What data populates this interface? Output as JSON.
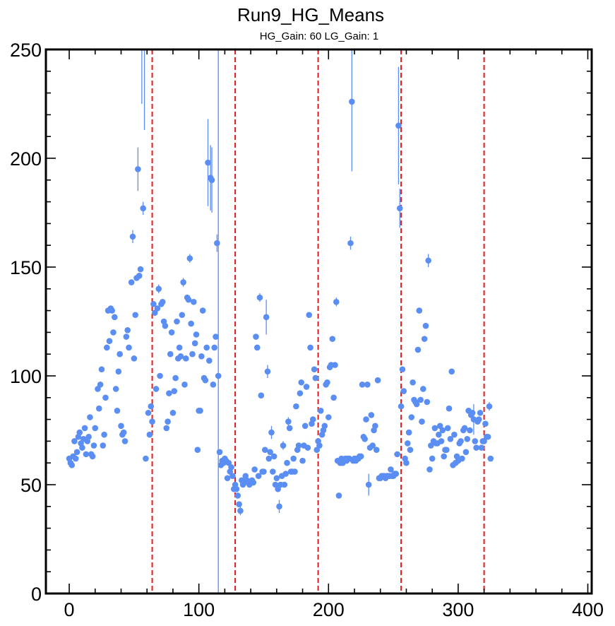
{
  "chart_data": {
    "type": "scatter",
    "title": "Run9_HG_Means",
    "subtitle": "HG_Gain: 60   LG_Gain: 1",
    "xlabel": "",
    "ylabel": "",
    "xlim": [
      -18,
      403
    ],
    "ylim": [
      0,
      250
    ],
    "xticks": [
      0,
      100,
      200,
      300,
      400
    ],
    "yticks": [
      0,
      50,
      100,
      150,
      200,
      250
    ],
    "xtick_labels": [
      "0",
      "100",
      "200",
      "300",
      "400"
    ],
    "ytick_labels": [
      "0",
      "50",
      "100",
      "150",
      "200",
      "250"
    ],
    "grid": false,
    "marker_color": "#5b8ef2",
    "vline_color": "#e41a1c",
    "vlines": [
      64,
      128,
      192,
      256,
      320
    ],
    "points": [
      {
        "x": 0,
        "y": 62
      },
      {
        "x": 1,
        "y": 60
      },
      {
        "x": 2,
        "y": 59
      },
      {
        "x": 3,
        "y": 63
      },
      {
        "x": 4,
        "y": 70
      },
      {
        "x": 5,
        "y": 62
      },
      {
        "x": 6,
        "y": 65
      },
      {
        "x": 7,
        "y": 72
      },
      {
        "x": 8,
        "y": 74
      },
      {
        "x": 9,
        "y": 69
      },
      {
        "x": 10,
        "y": 67
      },
      {
        "x": 11,
        "y": 71
      },
      {
        "x": 12,
        "y": 76
      },
      {
        "x": 13,
        "y": 64
      },
      {
        "x": 14,
        "y": 70
      },
      {
        "x": 15,
        "y": 72
      },
      {
        "x": 16,
        "y": 81
      },
      {
        "x": 17,
        "y": 64
      },
      {
        "x": 18,
        "y": 63
      },
      {
        "x": 19,
        "y": 68
      },
      {
        "x": 20,
        "y": 76
      },
      {
        "x": 22,
        "y": 94
      },
      {
        "x": 23,
        "y": 85
      },
      {
        "x": 24,
        "y": 96
      },
      {
        "x": 25,
        "y": 103
      },
      {
        "x": 26,
        "y": 68
      },
      {
        "x": 27,
        "y": 73
      },
      {
        "x": 28,
        "y": 90
      },
      {
        "x": 29,
        "y": 113
      },
      {
        "x": 30,
        "y": 130
      },
      {
        "x": 31,
        "y": 116
      },
      {
        "x": 32,
        "y": 131
      },
      {
        "x": 33,
        "y": 130
      },
      {
        "x": 34,
        "y": 120
      },
      {
        "x": 35,
        "y": 127
      },
      {
        "x": 36,
        "y": 94
      },
      {
        "x": 37,
        "y": 84
      },
      {
        "x": 38,
        "y": 102
      },
      {
        "x": 39,
        "y": 110
      },
      {
        "x": 40,
        "y": 77
      },
      {
        "x": 41,
        "y": 73
      },
      {
        "x": 42,
        "y": 74
      },
      {
        "x": 43,
        "y": 70
      },
      {
        "x": 44,
        "y": 118
      },
      {
        "x": 45,
        "y": 121
      },
      {
        "x": 46,
        "y": 113
      },
      {
        "x": 48,
        "y": 143
      },
      {
        "x": 49,
        "y": 164,
        "err": 3
      },
      {
        "x": 50,
        "y": 108
      },
      {
        "x": 51,
        "y": 128
      },
      {
        "x": 52,
        "y": 145
      },
      {
        "x": 53,
        "y": 195,
        "err": 10
      },
      {
        "x": 54,
        "y": 146
      },
      {
        "x": 55,
        "y": 149
      },
      {
        "x": 56,
        "y": 260,
        "err": 35
      },
      {
        "x": 57,
        "y": 177,
        "err": 3
      },
      {
        "x": 58,
        "y": 258,
        "err": 45
      },
      {
        "x": 59,
        "y": 62
      },
      {
        "x": 61,
        "y": 83
      },
      {
        "x": 62,
        "y": 73
      },
      {
        "x": 63,
        "y": 86
      },
      {
        "x": 64,
        "y": 79
      },
      {
        "x": 65,
        "y": 133
      },
      {
        "x": 66,
        "y": 129
      },
      {
        "x": 67,
        "y": 94
      },
      {
        "x": 68,
        "y": 131
      },
      {
        "x": 69,
        "y": 140,
        "err": 2
      },
      {
        "x": 70,
        "y": 100
      },
      {
        "x": 71,
        "y": 133
      },
      {
        "x": 72,
        "y": 134
      },
      {
        "x": 73,
        "y": 125
      },
      {
        "x": 74,
        "y": 123
      },
      {
        "x": 75,
        "y": 76
      },
      {
        "x": 76,
        "y": 79
      },
      {
        "x": 77,
        "y": 92
      },
      {
        "x": 78,
        "y": 110
      },
      {
        "x": 79,
        "y": 120
      },
      {
        "x": 80,
        "y": 83
      },
      {
        "x": 81,
        "y": 93
      },
      {
        "x": 82,
        "y": 99
      },
      {
        "x": 83,
        "y": 125
      },
      {
        "x": 84,
        "y": 108
      },
      {
        "x": 85,
        "y": 113
      },
      {
        "x": 86,
        "y": 109
      },
      {
        "x": 87,
        "y": 128
      },
      {
        "x": 88,
        "y": 143,
        "err": 2
      },
      {
        "x": 89,
        "y": 96
      },
      {
        "x": 90,
        "y": 108
      },
      {
        "x": 91,
        "y": 136
      },
      {
        "x": 92,
        "y": 135
      },
      {
        "x": 93,
        "y": 154,
        "err": 2
      },
      {
        "x": 94,
        "y": 124
      },
      {
        "x": 95,
        "y": 110
      },
      {
        "x": 96,
        "y": 134
      },
      {
        "x": 97,
        "y": 115
      },
      {
        "x": 98,
        "y": 119
      },
      {
        "x": 99,
        "y": 66
      },
      {
        "x": 100,
        "y": 84
      },
      {
        "x": 101,
        "y": 84
      },
      {
        "x": 102,
        "y": 109
      },
      {
        "x": 103,
        "y": 130
      },
      {
        "x": 104,
        "y": 99
      },
      {
        "x": 105,
        "y": 98
      },
      {
        "x": 106,
        "y": 113
      },
      {
        "x": 107,
        "y": 198,
        "err": 20
      },
      {
        "x": 108,
        "y": 107
      },
      {
        "x": 109,
        "y": 191,
        "err": 15
      },
      {
        "x": 110,
        "y": 190,
        "err": 15
      },
      {
        "x": 111,
        "y": 96
      },
      {
        "x": 112,
        "y": 113
      },
      {
        "x": 113,
        "y": 118
      },
      {
        "x": 114,
        "y": 161,
        "err": 4
      },
      {
        "x": 115,
        "y": 100,
        "err": 300
      },
      {
        "x": 116,
        "y": 65
      },
      {
        "x": 117,
        "y": 59
      },
      {
        "x": 118,
        "y": 61
      },
      {
        "x": 119,
        "y": 60
      },
      {
        "x": 120,
        "y": 62
      },
      {
        "x": 121,
        "y": 61
      },
      {
        "x": 122,
        "y": 53
      },
      {
        "x": 123,
        "y": 60
      },
      {
        "x": 124,
        "y": 56
      },
      {
        "x": 125,
        "y": 58
      },
      {
        "x": 126,
        "y": 54
      },
      {
        "x": 127,
        "y": 48
      },
      {
        "x": 128,
        "y": 50
      },
      {
        "x": 129,
        "y": 48
      },
      {
        "x": 130,
        "y": 45
      },
      {
        "x": 131,
        "y": 41
      },
      {
        "x": 132,
        "y": 38,
        "err": 2
      },
      {
        "x": 133,
        "y": 52
      },
      {
        "x": 134,
        "y": 50
      },
      {
        "x": 135,
        "y": 51
      },
      {
        "x": 136,
        "y": 54
      },
      {
        "x": 137,
        "y": 52
      },
      {
        "x": 138,
        "y": 51
      },
      {
        "x": 139,
        "y": 50
      },
      {
        "x": 140,
        "y": 51
      },
      {
        "x": 141,
        "y": 52
      },
      {
        "x": 142,
        "y": 51
      },
      {
        "x": 143,
        "y": 57
      },
      {
        "x": 144,
        "y": 118
      },
      {
        "x": 145,
        "y": 113
      },
      {
        "x": 146,
        "y": 54
      },
      {
        "x": 147,
        "y": 136,
        "err": 2
      },
      {
        "x": 148,
        "y": 91
      },
      {
        "x": 149,
        "y": 56
      },
      {
        "x": 150,
        "y": 56
      },
      {
        "x": 151,
        "y": 66
      },
      {
        "x": 152,
        "y": 127,
        "err": 8
      },
      {
        "x": 153,
        "y": 102,
        "err": 3
      },
      {
        "x": 154,
        "y": 62
      },
      {
        "x": 155,
        "y": 65
      },
      {
        "x": 156,
        "y": 74,
        "err": 3
      },
      {
        "x": 157,
        "y": 56
      },
      {
        "x": 158,
        "y": 63
      },
      {
        "x": 159,
        "y": 50
      },
      {
        "x": 160,
        "y": 53
      },
      {
        "x": 161,
        "y": 48
      },
      {
        "x": 162,
        "y": 40,
        "err": 3
      },
      {
        "x": 163,
        "y": 50
      },
      {
        "x": 164,
        "y": 54
      },
      {
        "x": 165,
        "y": 68,
        "err": 2
      },
      {
        "x": 166,
        "y": 50
      },
      {
        "x": 167,
        "y": 55
      },
      {
        "x": 168,
        "y": 60
      },
      {
        "x": 169,
        "y": 79,
        "err": 2
      },
      {
        "x": 170,
        "y": 76
      },
      {
        "x": 171,
        "y": 56
      },
      {
        "x": 172,
        "y": 56
      },
      {
        "x": 173,
        "y": 62
      },
      {
        "x": 174,
        "y": 56
      },
      {
        "x": 175,
        "y": 86
      },
      {
        "x": 176,
        "y": 66
      },
      {
        "x": 177,
        "y": 68
      },
      {
        "x": 178,
        "y": 92
      },
      {
        "x": 179,
        "y": 97
      },
      {
        "x": 180,
        "y": 61
      },
      {
        "x": 181,
        "y": 68
      },
      {
        "x": 182,
        "y": 77
      },
      {
        "x": 183,
        "y": 95
      },
      {
        "x": 184,
        "y": 67
      },
      {
        "x": 185,
        "y": 128
      },
      {
        "x": 186,
        "y": 113
      },
      {
        "x": 187,
        "y": 78
      },
      {
        "x": 188,
        "y": 80
      },
      {
        "x": 189,
        "y": 103
      },
      {
        "x": 190,
        "y": 99
      },
      {
        "x": 191,
        "y": 66
      },
      {
        "x": 192,
        "y": 70
      },
      {
        "x": 193,
        "y": 68
      },
      {
        "x": 194,
        "y": 84
      },
      {
        "x": 195,
        "y": 73
      },
      {
        "x": 196,
        "y": 75
      },
      {
        "x": 197,
        "y": 77
      },
      {
        "x": 198,
        "y": 96
      },
      {
        "x": 199,
        "y": 97
      },
      {
        "x": 200,
        "y": 81
      },
      {
        "x": 201,
        "y": 104
      },
      {
        "x": 202,
        "y": 105
      },
      {
        "x": 203,
        "y": 117
      },
      {
        "x": 204,
        "y": 90
      },
      {
        "x": 205,
        "y": 105
      },
      {
        "x": 206,
        "y": 134,
        "err": 2
      },
      {
        "x": 207,
        "y": 61
      },
      {
        "x": 208,
        "y": 45
      },
      {
        "x": 209,
        "y": 60
      },
      {
        "x": 210,
        "y": 62
      },
      {
        "x": 211,
        "y": 60
      },
      {
        "x": 212,
        "y": 61
      },
      {
        "x": 213,
        "y": 62
      },
      {
        "x": 214,
        "y": 61
      },
      {
        "x": 215,
        "y": 62
      },
      {
        "x": 216,
        "y": 62
      },
      {
        "x": 217,
        "y": 161,
        "err": 3
      },
      {
        "x": 218,
        "y": 226,
        "err": 32
      },
      {
        "x": 219,
        "y": 61
      },
      {
        "x": 220,
        "y": 62
      },
      {
        "x": 221,
        "y": 61
      },
      {
        "x": 222,
        "y": 62
      },
      {
        "x": 223,
        "y": 62
      },
      {
        "x": 224,
        "y": 63
      },
      {
        "x": 225,
        "y": 63
      },
      {
        "x": 226,
        "y": 96
      },
      {
        "x": 227,
        "y": 72
      },
      {
        "x": 228,
        "y": 71
      },
      {
        "x": 229,
        "y": 80
      },
      {
        "x": 230,
        "y": 96
      },
      {
        "x": 231,
        "y": 50,
        "err": 5
      },
      {
        "x": 232,
        "y": 67
      },
      {
        "x": 233,
        "y": 82
      },
      {
        "x": 234,
        "y": 68
      },
      {
        "x": 235,
        "y": 75
      },
      {
        "x": 236,
        "y": 77
      },
      {
        "x": 237,
        "y": 66
      },
      {
        "x": 238,
        "y": 98
      },
      {
        "x": 239,
        "y": 53
      },
      {
        "x": 240,
        "y": 53
      },
      {
        "x": 241,
        "y": 54
      },
      {
        "x": 242,
        "y": 54
      },
      {
        "x": 243,
        "y": 54
      },
      {
        "x": 244,
        "y": 53
      },
      {
        "x": 245,
        "y": 54
      },
      {
        "x": 246,
        "y": 54
      },
      {
        "x": 247,
        "y": 54
      },
      {
        "x": 248,
        "y": 57
      },
      {
        "x": 249,
        "y": 54
      },
      {
        "x": 250,
        "y": 54
      },
      {
        "x": 251,
        "y": 55
      },
      {
        "x": 252,
        "y": 55
      },
      {
        "x": 253,
        "y": 64
      },
      {
        "x": 254,
        "y": 215,
        "err": 27
      },
      {
        "x": 255,
        "y": 177,
        "err": 9
      },
      {
        "x": 256,
        "y": 86
      },
      {
        "x": 257,
        "y": 103
      },
      {
        "x": 258,
        "y": 93
      },
      {
        "x": 259,
        "y": 62
      },
      {
        "x": 260,
        "y": 60
      },
      {
        "x": 261,
        "y": 69
      },
      {
        "x": 262,
        "y": 74
      },
      {
        "x": 263,
        "y": 66
      },
      {
        "x": 264,
        "y": 81
      },
      {
        "x": 265,
        "y": 97
      },
      {
        "x": 266,
        "y": 89
      },
      {
        "x": 267,
        "y": 88
      },
      {
        "x": 268,
        "y": 87
      },
      {
        "x": 269,
        "y": 112
      },
      {
        "x": 270,
        "y": 130
      },
      {
        "x": 271,
        "y": 89
      },
      {
        "x": 272,
        "y": 79
      },
      {
        "x": 273,
        "y": 94
      },
      {
        "x": 274,
        "y": 117
      },
      {
        "x": 275,
        "y": 123
      },
      {
        "x": 276,
        "y": 88
      },
      {
        "x": 277,
        "y": 153,
        "err": 3
      },
      {
        "x": 278,
        "y": 57
      },
      {
        "x": 279,
        "y": 68
      },
      {
        "x": 280,
        "y": 62
      },
      {
        "x": 281,
        "y": 70
      },
      {
        "x": 282,
        "y": 76
      },
      {
        "x": 283,
        "y": 69
      },
      {
        "x": 284,
        "y": 69
      },
      {
        "x": 285,
        "y": 73
      },
      {
        "x": 286,
        "y": 77
      },
      {
        "x": 287,
        "y": 70
      },
      {
        "x": 288,
        "y": 75
      },
      {
        "x": 289,
        "y": 63
      },
      {
        "x": 290,
        "y": 66
      },
      {
        "x": 291,
        "y": 66
      },
      {
        "x": 292,
        "y": 76
      },
      {
        "x": 293,
        "y": 85
      },
      {
        "x": 294,
        "y": 71
      },
      {
        "x": 295,
        "y": 102
      },
      {
        "x": 296,
        "y": 59
      },
      {
        "x": 297,
        "y": 73
      },
      {
        "x": 298,
        "y": 60
      },
      {
        "x": 299,
        "y": 63
      },
      {
        "x": 300,
        "y": 61
      },
      {
        "x": 301,
        "y": 69
      },
      {
        "x": 302,
        "y": 70
      },
      {
        "x": 303,
        "y": 62
      },
      {
        "x": 304,
        "y": 75
      },
      {
        "x": 305,
        "y": 76
      },
      {
        "x": 306,
        "y": 65
      },
      {
        "x": 307,
        "y": 71
      },
      {
        "x": 308,
        "y": 84
      },
      {
        "x": 309,
        "y": 75
      },
      {
        "x": 310,
        "y": 82
      },
      {
        "x": 311,
        "y": 83
      },
      {
        "x": 312,
        "y": 80,
        "err": 7
      },
      {
        "x": 313,
        "y": 70
      },
      {
        "x": 314,
        "y": 67
      },
      {
        "x": 315,
        "y": 79
      },
      {
        "x": 316,
        "y": 80
      },
      {
        "x": 317,
        "y": 83
      },
      {
        "x": 318,
        "y": 67
      },
      {
        "x": 319,
        "y": 70
      },
      {
        "x": 320,
        "y": 70
      },
      {
        "x": 321,
        "y": 78
      },
      {
        "x": 322,
        "y": 72
      },
      {
        "x": 323,
        "y": 72
      },
      {
        "x": 324,
        "y": 86,
        "err": 2
      },
      {
        "x": 325,
        "y": 62
      }
    ]
  }
}
